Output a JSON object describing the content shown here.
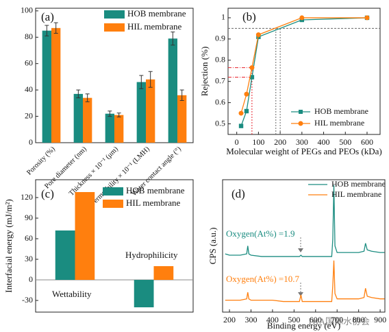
{
  "chart_data": [
    {
      "type": "bar",
      "panel_label": "(a)",
      "categories": [
        "Porosity (%)",
        "Pore diameter (nm)",
        "Thickness × 10⁻¹ (μm)",
        "Permeability × 10⁻¹ (LMH)",
        "Water contact angle (°)"
      ],
      "series": [
        {
          "name": "HOB membrane",
          "color": "#1a8c80",
          "values": [
            85,
            37,
            22,
            46,
            79
          ],
          "errors": [
            4,
            3,
            2,
            5,
            5
          ]
        },
        {
          "name": "HIL membrane",
          "color": "#ff7f0e",
          "values": [
            87,
            34,
            21,
            48,
            36
          ],
          "errors": [
            4,
            3,
            1.5,
            6,
            4
          ]
        }
      ],
      "ylim": [
        0,
        102
      ],
      "yticks": [
        0,
        20,
        40,
        60,
        80,
        100
      ]
    },
    {
      "type": "line",
      "panel_label": "(b)",
      "x_label": "Molecular weight of PEGs and PEOs (kDa)",
      "y_label": "Rejection (%)",
      "x": [
        20,
        45,
        70,
        100,
        300,
        600
      ],
      "series": [
        {
          "name": "HOB membrane",
          "color": "#1a8c80",
          "marker": "square",
          "values": [
            0.49,
            0.56,
            0.72,
            0.91,
            0.99,
            1.0
          ]
        },
        {
          "name": "HIL membrane",
          "color": "#ff7f0e",
          "marker": "circle",
          "values": [
            0.55,
            0.64,
            0.765,
            0.92,
            1.0,
            1.0
          ]
        }
      ],
      "xlim": [
        -40,
        660
      ],
      "xticks": [
        0,
        100,
        200,
        300,
        400,
        500,
        600
      ],
      "ylim": [
        0.45,
        1.045
      ],
      "yticks": [
        0.5,
        0.6,
        0.7,
        0.8,
        0.9,
        1.0
      ],
      "hlines": [
        {
          "value": 0.95,
          "color": "#666666"
        },
        {
          "value": 0.765,
          "color": "#e8202a"
        },
        {
          "value": 0.72,
          "color": "#e8202a"
        }
      ],
      "vlines": [
        {
          "value": 180,
          "color": "#666666"
        },
        {
          "value": 200,
          "color": "#666666"
        },
        {
          "value": 70,
          "color": "#e8202a"
        }
      ]
    },
    {
      "type": "bar",
      "panel_label": "(c)",
      "y_label": "Interfacial energy (mJ/m²)",
      "categories": [
        null,
        null
      ],
      "series": [
        {
          "name": "HOB membrane",
          "color": "#1a8c80",
          "values": [
            72,
            -40
          ]
        },
        {
          "name": "HIL membrane",
          "color": "#ff7f0e",
          "values": [
            128,
            20
          ]
        }
      ],
      "annotations": [
        {
          "text": "Wettability"
        },
        {
          "text": "Hydrophilicity"
        }
      ],
      "ylim": [
        -47,
        146
      ],
      "yticks": [
        -30,
        0,
        30,
        60,
        90,
        120
      ]
    },
    {
      "type": "line",
      "panel_label": "(d)",
      "x_label": "Binding energy (eV)",
      "y_label": "CPS (a.u.)",
      "x": [
        180,
        200,
        250,
        280,
        285,
        290,
        300,
        350,
        400,
        450,
        500,
        525,
        532,
        538,
        550,
        600,
        650,
        675,
        680,
        685,
        690,
        700,
        750,
        800,
        825,
        832,
        840,
        860,
        900,
        920
      ],
      "series": [
        {
          "name": "HOB membrane",
          "color": "#1a8c80",
          "values": [
            44,
            43,
            43,
            44,
            50,
            44,
            43,
            42,
            42,
            42,
            42,
            42,
            43,
            42,
            42,
            42,
            42,
            42,
            55,
            96,
            50,
            45,
            45,
            45,
            46,
            52,
            47,
            46,
            45,
            45
          ]
        },
        {
          "name": "HIL membrane",
          "color": "#ff7f0e",
          "values": [
            9,
            9,
            9,
            10,
            15,
            10,
            9,
            9,
            9,
            8,
            8,
            8,
            13,
            8,
            8,
            8,
            8,
            8,
            20,
            39,
            14,
            10,
            10,
            10,
            11,
            18,
            12,
            11,
            10,
            10
          ]
        }
      ],
      "annotations": [
        {
          "text": "Oxygen(At%) =1.9",
          "color": "#1a8c80"
        },
        {
          "text": "Oxygen(At%) =10.7",
          "color": "#ff7f0e"
        }
      ],
      "xlim": [
        168,
        922
      ],
      "xticks": [
        200,
        300,
        400,
        500,
        600,
        700,
        800,
        900
      ],
      "ylim": [
        0,
        100
      ]
    }
  ],
  "watermark": "IWA国际水协会"
}
